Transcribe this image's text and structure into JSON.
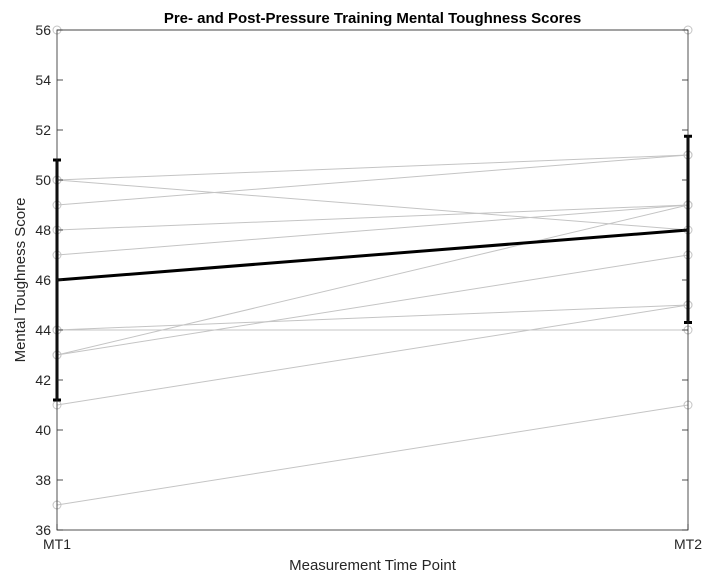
{
  "chart_data": {
    "type": "line",
    "title": "Pre- and Post-Pressure Training Mental Toughness Scores",
    "xlabel": "Measurement Time Point",
    "ylabel": "Mental Toughness Score",
    "categories": [
      "MT1",
      "MT2"
    ],
    "ylim": [
      36,
      56
    ],
    "yticks": [
      36,
      38,
      40,
      42,
      44,
      46,
      48,
      50,
      52,
      54,
      56
    ],
    "individual_series": [
      {
        "values": [
          56,
          56
        ]
      },
      {
        "values": [
          50,
          51
        ]
      },
      {
        "values": [
          50,
          48
        ]
      },
      {
        "values": [
          49,
          51
        ]
      },
      {
        "values": [
          48,
          49
        ]
      },
      {
        "values": [
          47,
          49
        ]
      },
      {
        "values": [
          44,
          45
        ]
      },
      {
        "values": [
          44,
          44
        ]
      },
      {
        "values": [
          43,
          49
        ]
      },
      {
        "values": [
          43,
          47
        ]
      },
      {
        "values": [
          41,
          45
        ]
      },
      {
        "values": [
          37,
          41
        ]
      }
    ],
    "mean_series": {
      "values": [
        46,
        48
      ],
      "error_low": [
        41.2,
        44.3
      ],
      "error_high": [
        50.8,
        51.75
      ]
    },
    "grid": false,
    "colors": {
      "individual": "#c4c4c4",
      "mean": "#000000",
      "axis": "#262626"
    }
  }
}
